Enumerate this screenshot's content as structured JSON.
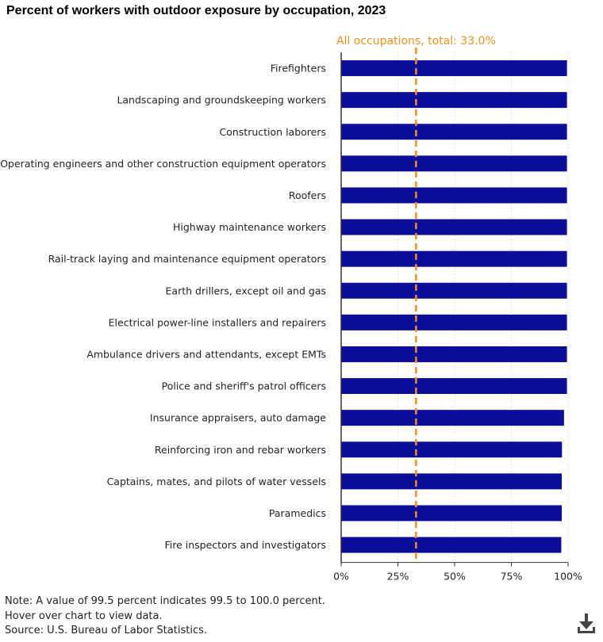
{
  "title": "Percent of workers with outdoor exposure by occupation, 2023",
  "notes": {
    "note": "Note: A value of 99.5 percent indicates 99.5 to 100.0 percent.",
    "hover": "Hover over chart to view data.",
    "source": "Source: U.S. Bureau of Labor Statistics."
  },
  "download_icon": "download-icon",
  "colors": {
    "bar": "#0d0d9c",
    "reference": "#f0901e",
    "grid": "#cccccc",
    "axis": "#333333"
  },
  "chart_data": {
    "type": "bar",
    "orientation": "horizontal",
    "categories": [
      "Firefighters",
      "Landscaping and groundskeeping workers",
      "Construction laborers",
      "Operating engineers and other construction equipment operators",
      "Roofers",
      "Highway maintenance workers",
      "Rail-track laying and maintenance equipment operators",
      "Earth drillers, except oil and gas",
      "Electrical power-line installers and repairers",
      "Ambulance drivers and attendants, except EMTs",
      "Police and sheriff's patrol officers",
      "Insurance appraisers, auto damage",
      "Reinforcing iron and rebar workers",
      "Captains, mates, and pilots of water vessels",
      "Paramedics",
      "Fire inspectors and investigators"
    ],
    "values": [
      99.5,
      99.5,
      99.5,
      99.5,
      99.5,
      99.5,
      99.5,
      99.5,
      99.5,
      99.5,
      99.5,
      98.2,
      97.3,
      97.2,
      97.2,
      97.0
    ],
    "reference_line": {
      "label": "All occupations, total: 33.0%",
      "value": 33.0
    },
    "xlim": [
      0,
      100
    ],
    "xticks": [
      "0%",
      "25%",
      "50%",
      "75%",
      "100%"
    ],
    "xtick_values": [
      0,
      25,
      50,
      75,
      100
    ],
    "grid": "vertical dotted",
    "legend": "none"
  }
}
